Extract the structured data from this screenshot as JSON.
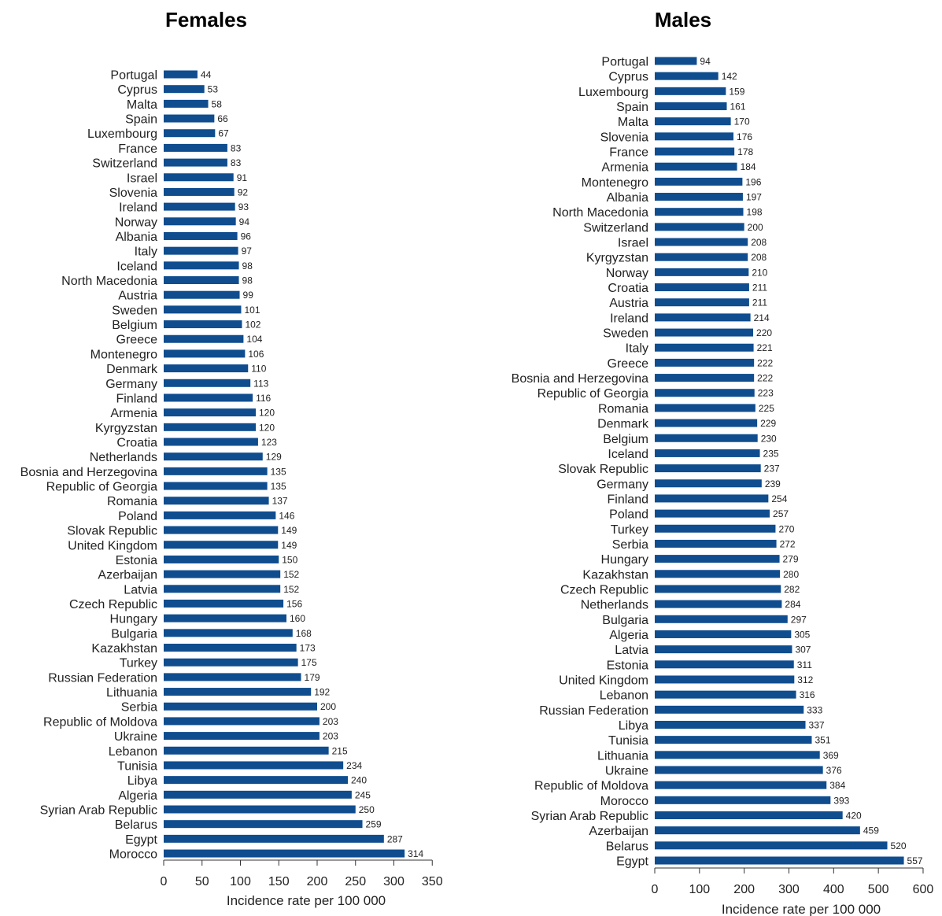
{
  "chart_data": [
    {
      "type": "bar",
      "orientation": "horizontal",
      "title": "Females",
      "xlabel": "Incidence rate per 100 000",
      "ylabel": "",
      "xlim": [
        0,
        350
      ],
      "xticks": [
        0,
        50,
        100,
        150,
        200,
        250,
        300,
        350
      ],
      "grid": false,
      "bar_color": "#0f4d8f",
      "categories": [
        "Portugal",
        "Cyprus",
        "Malta",
        "Spain",
        "Luxembourg",
        "France",
        "Switzerland",
        "Israel",
        "Slovenia",
        "Ireland",
        "Norway",
        "Albania",
        "Italy",
        "Iceland",
        "North Macedonia",
        "Austria",
        "Sweden",
        "Belgium",
        "Greece",
        "Montenegro",
        "Denmark",
        "Germany",
        "Finland",
        "Armenia",
        "Kyrgyzstan",
        "Croatia",
        "Netherlands",
        "Bosnia and Herzegovina",
        "Republic of Georgia",
        "Romania",
        "Poland",
        "Slovak Republic",
        "United Kingdom",
        "Estonia",
        "Azerbaijan",
        "Latvia",
        "Czech Republic",
        "Hungary",
        "Bulgaria",
        "Kazakhstan",
        "Turkey",
        "Russian Federation",
        "Lithuania",
        "Serbia",
        "Republic of Moldova",
        "Ukraine",
        "Lebanon",
        "Tunisia",
        "Libya",
        "Algeria",
        "Syrian Arab Republic",
        "Belarus",
        "Egypt",
        "Morocco"
      ],
      "values": [
        44,
        53,
        58,
        66,
        67,
        83,
        83,
        91,
        92,
        93,
        94,
        96,
        97,
        98,
        98,
        99,
        101,
        102,
        104,
        106,
        110,
        113,
        116,
        120,
        120,
        123,
        129,
        135,
        135,
        137,
        146,
        149,
        149,
        150,
        152,
        152,
        156,
        160,
        168,
        173,
        175,
        179,
        192,
        200,
        203,
        203,
        215,
        234,
        240,
        245,
        250,
        259,
        287,
        314
      ]
    },
    {
      "type": "bar",
      "orientation": "horizontal",
      "title": "Males",
      "xlabel": "Incidence rate per 100 000",
      "ylabel": "",
      "xlim": [
        0,
        600
      ],
      "xticks": [
        0,
        100,
        200,
        300,
        400,
        500,
        600
      ],
      "grid": false,
      "bar_color": "#0f4d8f",
      "categories": [
        "Portugal",
        "Cyprus",
        "Luxembourg",
        "Spain",
        "Malta",
        "Slovenia",
        "France",
        "Armenia",
        "Montenegro",
        "Albania",
        "North Macedonia",
        "Switzerland",
        "Israel",
        "Kyrgyzstan",
        "Norway",
        "Croatia",
        "Austria",
        "Ireland",
        "Sweden",
        "Italy",
        "Greece",
        "Bosnia and Herzegovina",
        "Republic of Georgia",
        "Romania",
        "Denmark",
        "Belgium",
        "Iceland",
        "Slovak Republic",
        "Germany",
        "Finland",
        "Poland",
        "Turkey",
        "Serbia",
        "Hungary",
        "Kazakhstan",
        "Czech Republic",
        "Netherlands",
        "Bulgaria",
        "Algeria",
        "Latvia",
        "Estonia",
        "United Kingdom",
        "Lebanon",
        "Russian Federation",
        "Libya",
        "Tunisia",
        "Lithuania",
        "Ukraine",
        "Republic of Moldova",
        "Morocco",
        "Syrian Arab Republic",
        "Azerbaijan",
        "Belarus",
        "Egypt"
      ],
      "values": [
        94,
        142,
        159,
        161,
        170,
        176,
        178,
        184,
        196,
        197,
        198,
        200,
        208,
        208,
        210,
        211,
        211,
        214,
        220,
        221,
        222,
        222,
        223,
        225,
        229,
        230,
        235,
        237,
        239,
        254,
        257,
        270,
        272,
        279,
        280,
        282,
        284,
        297,
        305,
        307,
        311,
        312,
        316,
        333,
        337,
        351,
        369,
        376,
        384,
        393,
        420,
        459,
        520,
        557
      ]
    }
  ]
}
